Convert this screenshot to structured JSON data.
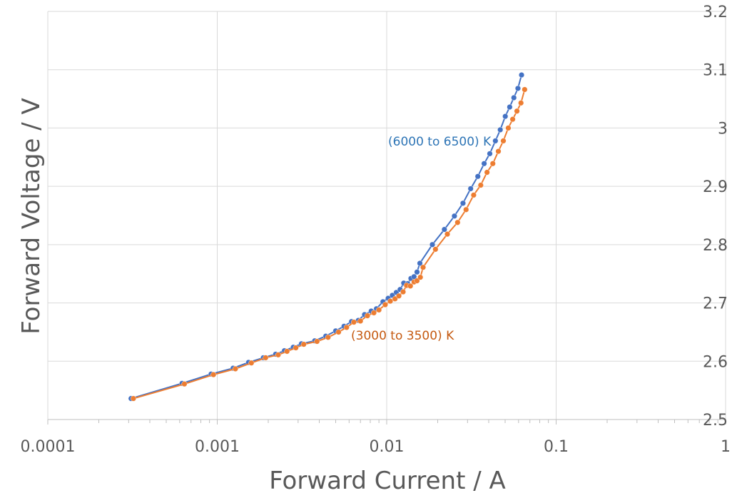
{
  "chart_data": {
    "type": "scatter",
    "title": "",
    "xlabel": "Forward Current / A",
    "ylabel": "Forward Voltage / V",
    "x_scale": "log",
    "xlim": [
      0.0001,
      1
    ],
    "ylim": [
      2.5,
      3.2
    ],
    "x_tick_labels": [
      "0.0001",
      "0.001",
      "0.01",
      "0.1",
      "1"
    ],
    "x_ticks": [
      0.0001,
      0.001,
      0.01,
      0.1,
      1
    ],
    "y_tick_labels": [
      "2.5",
      "2.6",
      "2.7",
      "2.8",
      "2.9",
      "3",
      "3.1",
      "3.2"
    ],
    "y_ticks": [
      2.5,
      2.6,
      2.7,
      2.8,
      2.9,
      3.0,
      3.1,
      3.2
    ],
    "y_axis_side": "right",
    "grid": true,
    "legend": "none",
    "series": [
      {
        "name": "(6000 to 6500) K",
        "color": "#4472C4",
        "points": [
          [
            0.00031,
            2.536
          ],
          [
            0.00062,
            2.562
          ],
          [
            0.00092,
            2.578
          ],
          [
            0.00124,
            2.588
          ],
          [
            0.00153,
            2.598
          ],
          [
            0.00187,
            2.606
          ],
          [
            0.00221,
            2.612
          ],
          [
            0.00249,
            2.618
          ],
          [
            0.00281,
            2.624
          ],
          [
            0.00314,
            2.63
          ],
          [
            0.00376,
            2.635
          ],
          [
            0.00437,
            2.643
          ],
          [
            0.005,
            2.652
          ],
          [
            0.0056,
            2.66
          ],
          [
            0.0062,
            2.668
          ],
          [
            0.0068,
            2.67
          ],
          [
            0.0074,
            2.68
          ],
          [
            0.0081,
            2.686
          ],
          [
            0.0087,
            2.69
          ],
          [
            0.0095,
            2.702
          ],
          [
            0.0102,
            2.708
          ],
          [
            0.0108,
            2.713
          ],
          [
            0.0114,
            2.718
          ],
          [
            0.012,
            2.723
          ],
          [
            0.0126,
            2.734
          ],
          [
            0.0133,
            2.733
          ],
          [
            0.0139,
            2.742
          ],
          [
            0.0145,
            2.745
          ],
          [
            0.0151,
            2.753
          ],
          [
            0.0157,
            2.768
          ],
          [
            0.0186,
            2.8
          ],
          [
            0.0219,
            2.826
          ],
          [
            0.0251,
            2.849
          ],
          [
            0.0282,
            2.871
          ],
          [
            0.0313,
            2.896
          ],
          [
            0.0345,
            2.917
          ],
          [
            0.0376,
            2.939
          ],
          [
            0.0406,
            2.956
          ],
          [
            0.0438,
            2.978
          ],
          [
            0.0468,
            2.997
          ],
          [
            0.0501,
            3.02
          ],
          [
            0.0532,
            3.036
          ],
          [
            0.0563,
            3.052
          ],
          [
            0.0595,
            3.068
          ],
          [
            0.0625,
            3.091
          ]
        ]
      },
      {
        "name": "(3000 to 3500) K",
        "color": "#ED7D31",
        "points": [
          [
            0.00032,
            2.536
          ],
          [
            0.00064,
            2.561
          ],
          [
            0.00095,
            2.577
          ],
          [
            0.00128,
            2.587
          ],
          [
            0.00159,
            2.597
          ],
          [
            0.00193,
            2.606
          ],
          [
            0.00229,
            2.611
          ],
          [
            0.00258,
            2.617
          ],
          [
            0.00291,
            2.623
          ],
          [
            0.00324,
            2.629
          ],
          [
            0.00388,
            2.634
          ],
          [
            0.00451,
            2.641
          ],
          [
            0.0052,
            2.65
          ],
          [
            0.0058,
            2.658
          ],
          [
            0.0064,
            2.667
          ],
          [
            0.007,
            2.669
          ],
          [
            0.0077,
            2.678
          ],
          [
            0.0084,
            2.683
          ],
          [
            0.009,
            2.688
          ],
          [
            0.0098,
            2.697
          ],
          [
            0.0105,
            2.703
          ],
          [
            0.0112,
            2.707
          ],
          [
            0.0118,
            2.712
          ],
          [
            0.0125,
            2.719
          ],
          [
            0.0131,
            2.73
          ],
          [
            0.0138,
            2.729
          ],
          [
            0.0145,
            2.736
          ],
          [
            0.0151,
            2.738
          ],
          [
            0.0158,
            2.744
          ],
          [
            0.0164,
            2.761
          ],
          [
            0.0194,
            2.792
          ],
          [
            0.0228,
            2.818
          ],
          [
            0.0262,
            2.838
          ],
          [
            0.0294,
            2.86
          ],
          [
            0.0326,
            2.885
          ],
          [
            0.0359,
            2.902
          ],
          [
            0.0391,
            2.924
          ],
          [
            0.0423,
            2.939
          ],
          [
            0.0456,
            2.96
          ],
          [
            0.0488,
            2.978
          ],
          [
            0.0522,
            3.0
          ],
          [
            0.0554,
            3.015
          ],
          [
            0.0587,
            3.029
          ],
          [
            0.062,
            3.043
          ],
          [
            0.0652,
            3.066
          ]
        ]
      }
    ],
    "annotations": [
      {
        "text": "(6000 to 6500) K",
        "series": 0,
        "color": "#2E75B6"
      },
      {
        "text": "(3000 to 3500) K",
        "series": 1,
        "color": "#C55A11"
      }
    ]
  }
}
